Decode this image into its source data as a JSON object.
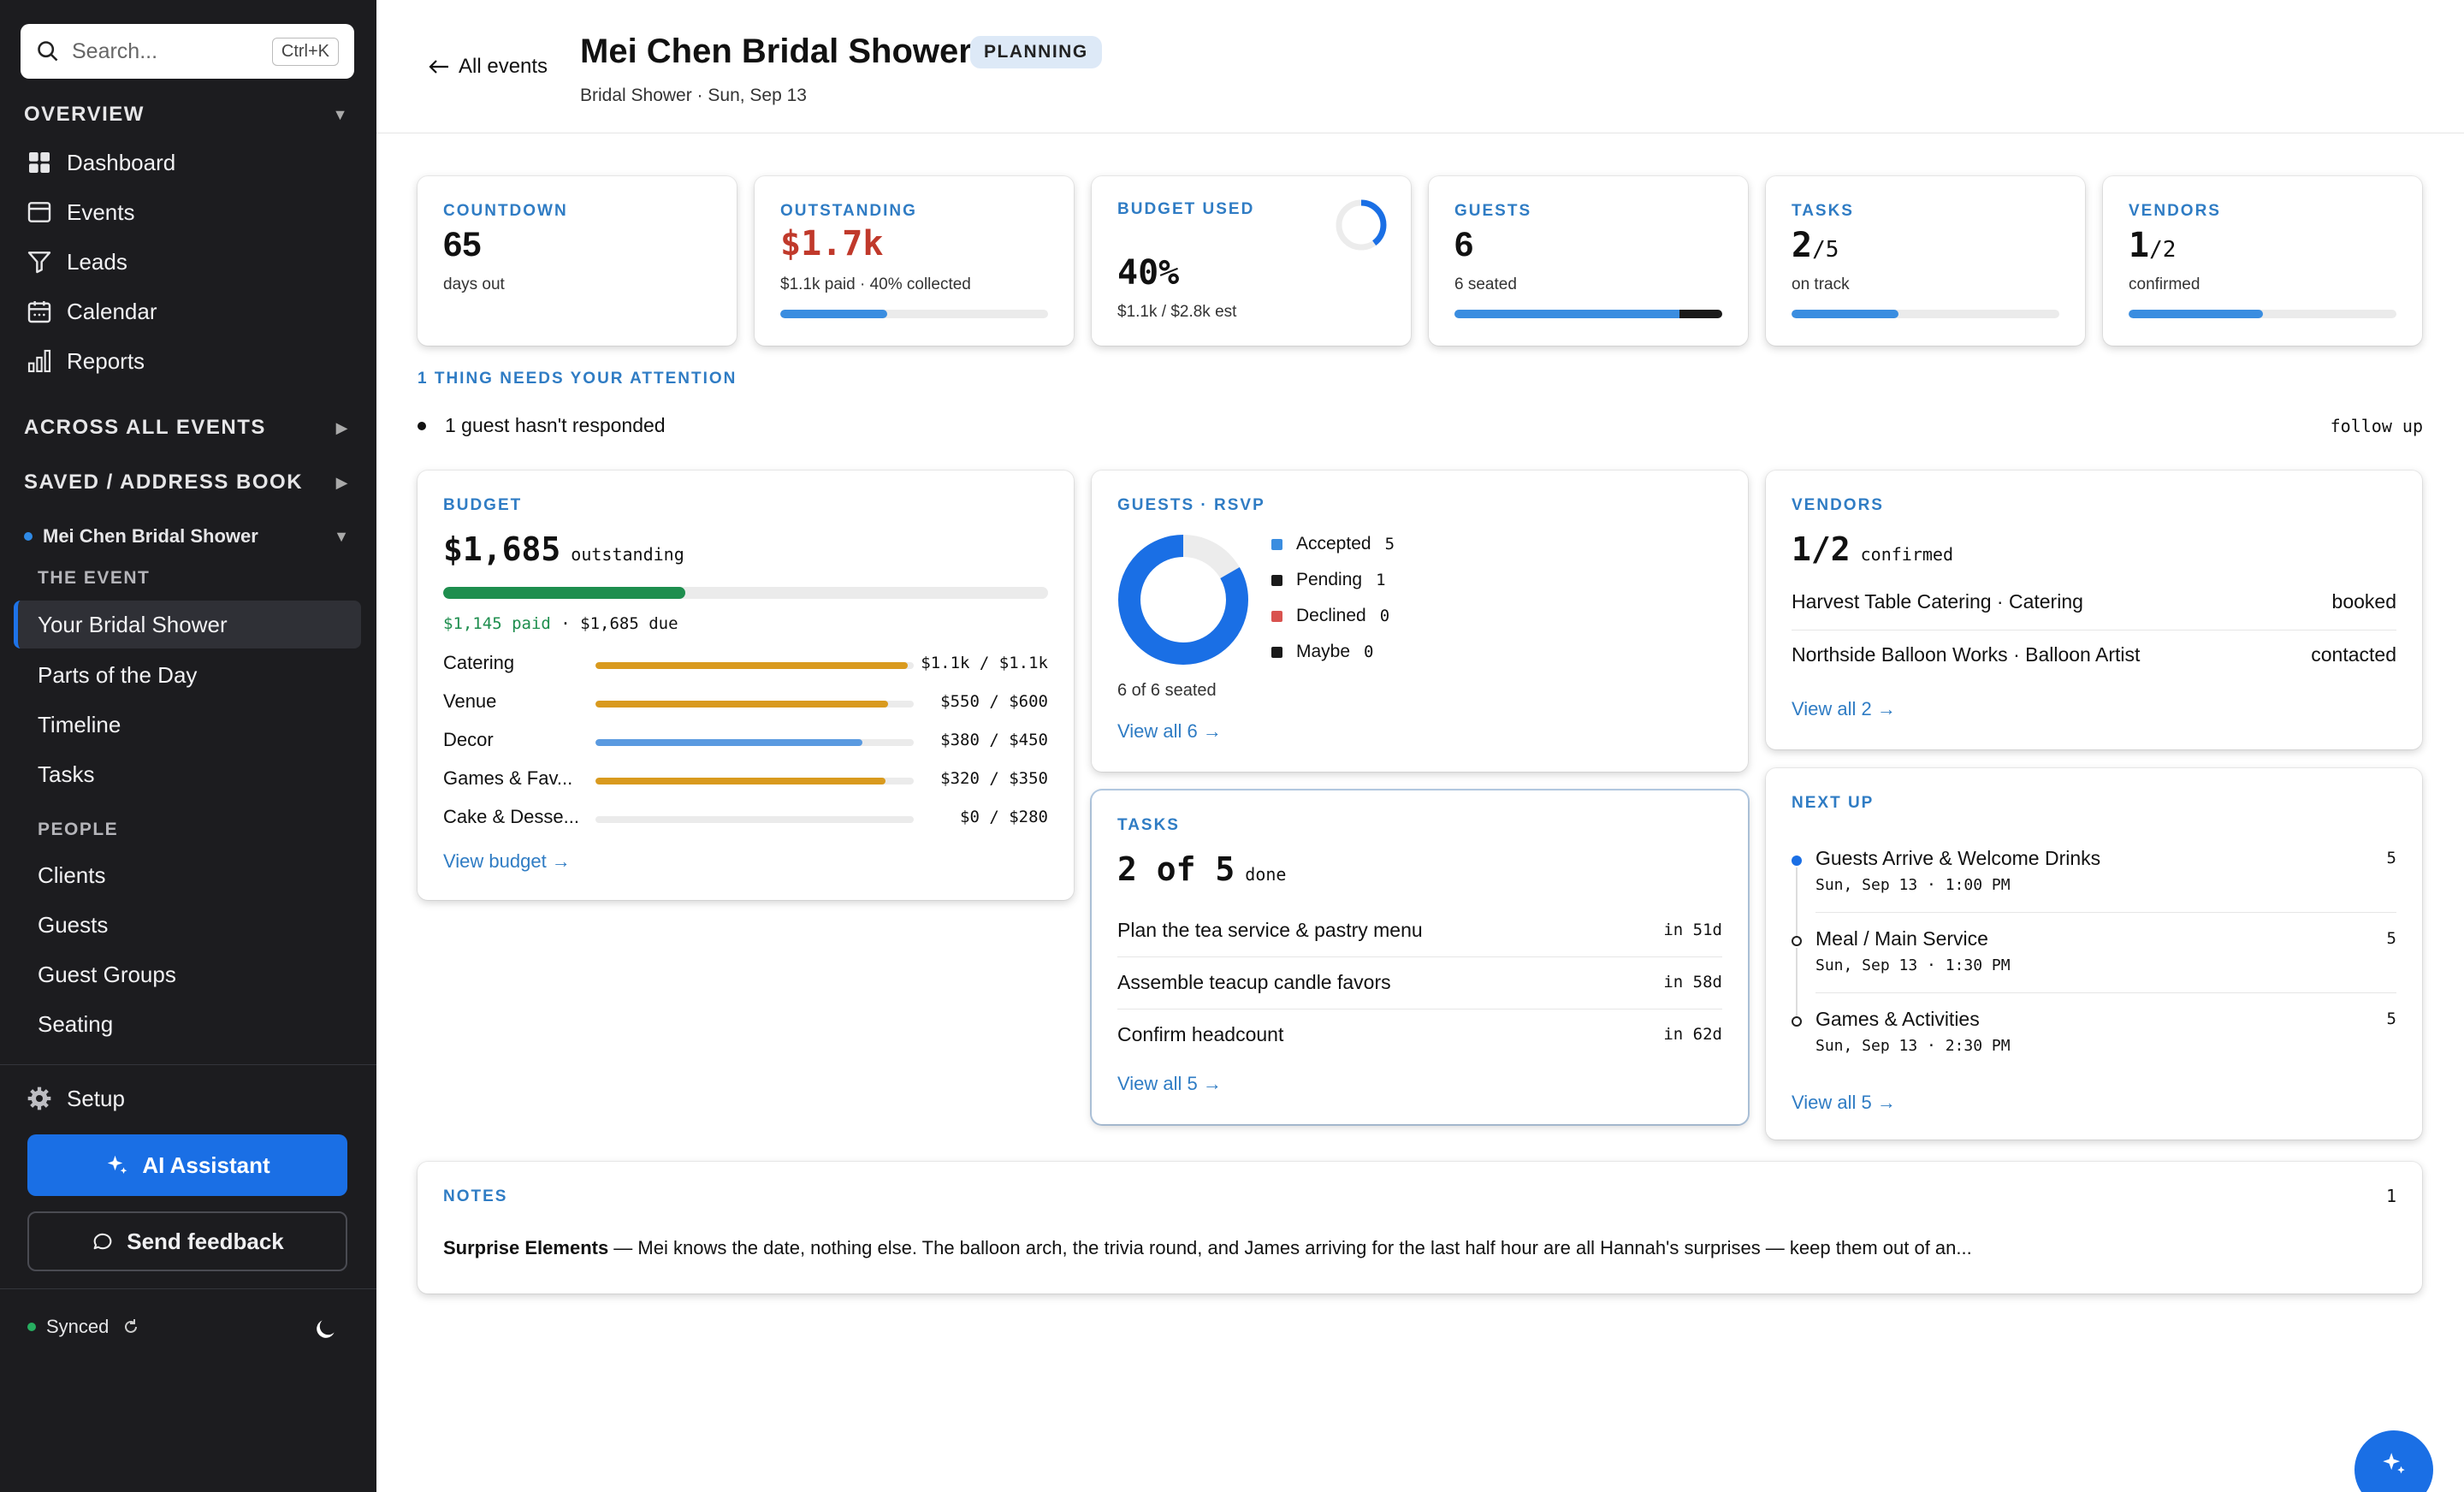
{
  "sidebar": {
    "search_placeholder": "Search...",
    "search_shortcut": "Ctrl+K",
    "overview_label": "OVERVIEW",
    "nav": [
      "Dashboard",
      "Events",
      "Leads",
      "Calendar",
      "Reports"
    ],
    "across_label": "ACROSS ALL EVENTS",
    "saved_label": "SAVED / ADDRESS BOOK",
    "event_name": "Mei Chen Bridal Shower",
    "the_event_label": "THE EVENT",
    "event_items": [
      "Your Bridal Shower",
      "Parts of the Day",
      "Timeline",
      "Tasks"
    ],
    "people_label": "PEOPLE",
    "people_items": [
      "Clients",
      "Guests",
      "Guest Groups",
      "Seating"
    ],
    "setup_label": "Setup",
    "ai_label": "AI Assistant",
    "feedback_label": "Send feedback",
    "synced_label": "Synced"
  },
  "header": {
    "back_label": "All events",
    "title": "Mei Chen Bridal Shower",
    "status": "PLANNING",
    "subtitle": "Bridal Shower · Sun, Sep 13"
  },
  "stats": {
    "countdown": {
      "label": "COUNTDOWN",
      "value": "65",
      "sub": "days out"
    },
    "outstanding": {
      "label": "OUTSTANDING",
      "value": "$1.7k",
      "sub": "$1.1k paid · 40% collected",
      "progress": 0.4
    },
    "budget": {
      "label": "BUDGET USED",
      "value": "40%",
      "sub": "$1.1k / $2.8k est",
      "ring": 0.4
    },
    "guests": {
      "label": "GUESTS",
      "value": "6",
      "sub": "6 seated",
      "progress": 0.84,
      "progress_dark": 0.16
    },
    "tasks": {
      "label": "TASKS",
      "value_main": "2",
      "value_rest": "/5",
      "sub": "on track",
      "progress": 0.4
    },
    "vendors": {
      "label": "VENDORS",
      "value_main": "1",
      "value_rest": "/2",
      "sub": "confirmed",
      "progress": 0.5
    }
  },
  "attention": {
    "label": "1 THING NEEDS YOUR ATTENTION",
    "item": "1 guest hasn't responded",
    "action": "follow up"
  },
  "budget_card": {
    "label": "BUDGET",
    "amount": "$1,685",
    "amount_suffix": "outstanding",
    "paid_fraction": 0.4,
    "paid_text": "$1,145 paid",
    "due_text": " · $1,685 due",
    "items": [
      {
        "name": "Catering",
        "value": "$1.1k / $1.1k",
        "frac": 0.98,
        "color": "#d99a1e"
      },
      {
        "name": "Venue",
        "value": "$550 / $600",
        "frac": 0.92,
        "color": "#d99a1e"
      },
      {
        "name": "Decor",
        "value": "$380 / $450",
        "frac": 0.84,
        "color": "#5a9ae0"
      },
      {
        "name": "Games & Fav...",
        "value": "$320 / $350",
        "frac": 0.91,
        "color": "#d99a1e"
      },
      {
        "name": "Cake & Desse...",
        "value": "$0 / $280",
        "frac": 0.0,
        "color": "#d99a1e"
      }
    ],
    "link": "View budget →"
  },
  "guests_card": {
    "label": "GUESTS · RSVP",
    "legend": [
      {
        "name": "Accepted",
        "count": "5",
        "color": "#3a8de0"
      },
      {
        "name": "Pending",
        "count": "1",
        "color": "#1a1a1a"
      },
      {
        "name": "Declined",
        "count": "0",
        "color": "#d9534f"
      },
      {
        "name": "Maybe",
        "count": "0",
        "color": "#1a1a1a"
      }
    ],
    "donut": {
      "accepted": 5,
      "pending": 1,
      "total": 6
    },
    "seated": "6 of 6 seated",
    "link": "View all 6 →"
  },
  "vendors_card": {
    "label": "VENDORS",
    "summary_main": "1/2",
    "summary_suffix": "confirmed",
    "items": [
      {
        "name": "Harvest Table Catering · Catering",
        "status": "booked"
      },
      {
        "name": "Northside Balloon Works · Balloon Artist",
        "status": "contacted"
      }
    ],
    "link": "View all 2 →"
  },
  "tasks_card": {
    "label": "TASKS",
    "summary_main": "2 of 5",
    "summary_suffix": "done",
    "items": [
      {
        "name": "Plan the tea service & pastry menu",
        "due": "in 51d"
      },
      {
        "name": "Assemble teacup candle favors",
        "due": "in 58d"
      },
      {
        "name": "Confirm headcount",
        "due": "in 62d"
      }
    ],
    "link": "View all 5 →"
  },
  "nextup_card": {
    "label": "NEXT UP",
    "items": [
      {
        "name": "Guests Arrive & Welcome Drinks",
        "time": "Sun, Sep 13 · 1:00 PM",
        "count": "5"
      },
      {
        "name": "Meal / Main Service",
        "time": "Sun, Sep 13 · 1:30 PM",
        "count": "5"
      },
      {
        "name": "Games & Activities",
        "time": "Sun, Sep 13 · 2:30 PM",
        "count": "5"
      }
    ],
    "link": "View all 5 →"
  },
  "notes_card": {
    "label": "NOTES",
    "count": "1",
    "title": "Surprise Elements",
    "body": " — Mei knows the date, nothing else. The balloon arch, the trivia round, and James arriving for the last half hour are all Hannah's surprises — keep them out of an..."
  },
  "colors": {
    "accent": "#1a6fe5",
    "link": "#2f7cc4",
    "danger": "#c0392b",
    "success": "#1e8e4e",
    "sidebar": "#1c1c1f"
  }
}
